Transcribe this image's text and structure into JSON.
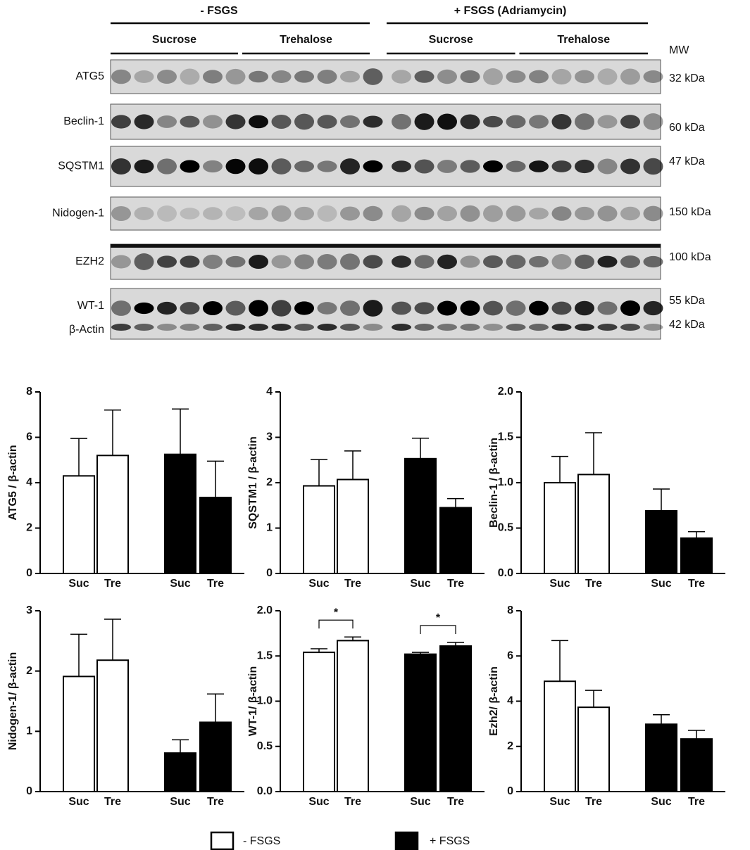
{
  "blot": {
    "groups": [
      {
        "label": "- FSGS",
        "subgroups": [
          "Sucrose",
          "Trehalose"
        ]
      },
      {
        "label": "+ FSGS (Adriamycin)",
        "subgroups": [
          "Sucrose",
          "Trehalose"
        ]
      }
    ],
    "mw_header": "MW",
    "rows": [
      {
        "labels": [
          "ATG5"
        ],
        "mw": [
          "32 kDa"
        ]
      },
      {
        "labels": [
          "Beclin-1"
        ],
        "mw": [
          "60 kDa"
        ]
      },
      {
        "labels": [
          "SQSTM1"
        ],
        "mw": [
          "47 kDa"
        ]
      },
      {
        "labels": [
          "Nidogen-1"
        ],
        "mw": [
          "150 kDa"
        ]
      },
      {
        "labels": [
          "EZH2"
        ],
        "mw": [
          "100 kDa"
        ]
      },
      {
        "labels": [
          "WT-1",
          "β-Actin"
        ],
        "mw": [
          "55 kDa",
          "42 kDa"
        ]
      }
    ]
  },
  "legend": [
    {
      "name": "- FSGS",
      "color": "#ffffff"
    },
    {
      "name": "+ FSGS",
      "color": "#000000"
    }
  ],
  "chart_data": [
    {
      "type": "bar",
      "y_label": "ATG5 / β-actin",
      "categories": [
        "Suc",
        "Tre"
      ],
      "series": [
        {
          "values": [
            4.3,
            5.2
          ],
          "errors": [
            1.65,
            2.0
          ]
        },
        {
          "values": [
            5.25,
            3.35
          ],
          "errors": [
            2.0,
            1.6
          ]
        }
      ],
      "ylim": [
        0,
        8
      ],
      "yticks": [
        0,
        2,
        4,
        6,
        8
      ]
    },
    {
      "type": "bar",
      "y_label": "SQSTM1 / β-actin",
      "categories": [
        "Suc",
        "Tre"
      ],
      "series": [
        {
          "values": [
            1.93,
            2.07
          ],
          "errors": [
            0.58,
            0.63
          ]
        },
        {
          "values": [
            2.53,
            1.45
          ],
          "errors": [
            0.45,
            0.2
          ]
        }
      ],
      "ylim": [
        0,
        4
      ],
      "yticks": [
        0,
        1,
        2,
        3,
        4
      ]
    },
    {
      "type": "bar",
      "y_label": "Beclin-1 / β-actin",
      "categories": [
        "Suc",
        "Tre"
      ],
      "series": [
        {
          "values": [
            1.0,
            1.09
          ],
          "errors": [
            0.29,
            0.46
          ]
        },
        {
          "values": [
            0.69,
            0.39
          ],
          "errors": [
            0.24,
            0.07
          ]
        }
      ],
      "ylim": [
        0,
        2
      ],
      "yticks": [
        {
          "value": 0,
          "label": "0.0"
        },
        0.5,
        {
          "value": 1,
          "label": "1.0"
        },
        1.5,
        {
          "value": 2,
          "label": "2.0"
        }
      ]
    },
    {
      "type": "bar",
      "y_label": "Nidogen-1/ β-actin",
      "categories": [
        "Suc",
        "Tre"
      ],
      "series": [
        {
          "values": [
            1.91,
            2.18
          ],
          "errors": [
            0.7,
            0.68
          ]
        },
        {
          "values": [
            0.64,
            1.15
          ],
          "errors": [
            0.22,
            0.47
          ]
        }
      ],
      "ylim": [
        0,
        3
      ],
      "yticks": [
        0,
        1,
        2,
        3
      ]
    },
    {
      "type": "bar",
      "y_label": "WT-1/ β-actin",
      "categories": [
        "Suc",
        "Tre"
      ],
      "series": [
        {
          "values": [
            1.54,
            1.67
          ],
          "errors": [
            0.04,
            0.04
          ]
        },
        {
          "values": [
            1.52,
            1.61
          ],
          "errors": [
            0.02,
            0.04
          ]
        }
      ],
      "ylim": [
        0,
        2
      ],
      "yticks": [
        {
          "value": 0,
          "label": "0.0"
        },
        0.5,
        {
          "value": 1,
          "label": "1.0"
        },
        1.5,
        {
          "value": 2,
          "label": "2.0"
        }
      ],
      "significance": [
        {
          "series": 0,
          "text": "*"
        },
        {
          "series": 1,
          "text": "*"
        }
      ]
    },
    {
      "type": "bar",
      "y_label": "Ezh2/ β-actin",
      "categories": [
        "Suc",
        "Tre"
      ],
      "series": [
        {
          "values": [
            4.88,
            3.73
          ],
          "errors": [
            1.8,
            0.75
          ]
        },
        {
          "values": [
            2.98,
            2.33
          ],
          "errors": [
            0.42,
            0.38
          ]
        }
      ],
      "ylim": [
        0,
        8
      ],
      "yticks": [
        0,
        2,
        4,
        6,
        8
      ]
    }
  ]
}
